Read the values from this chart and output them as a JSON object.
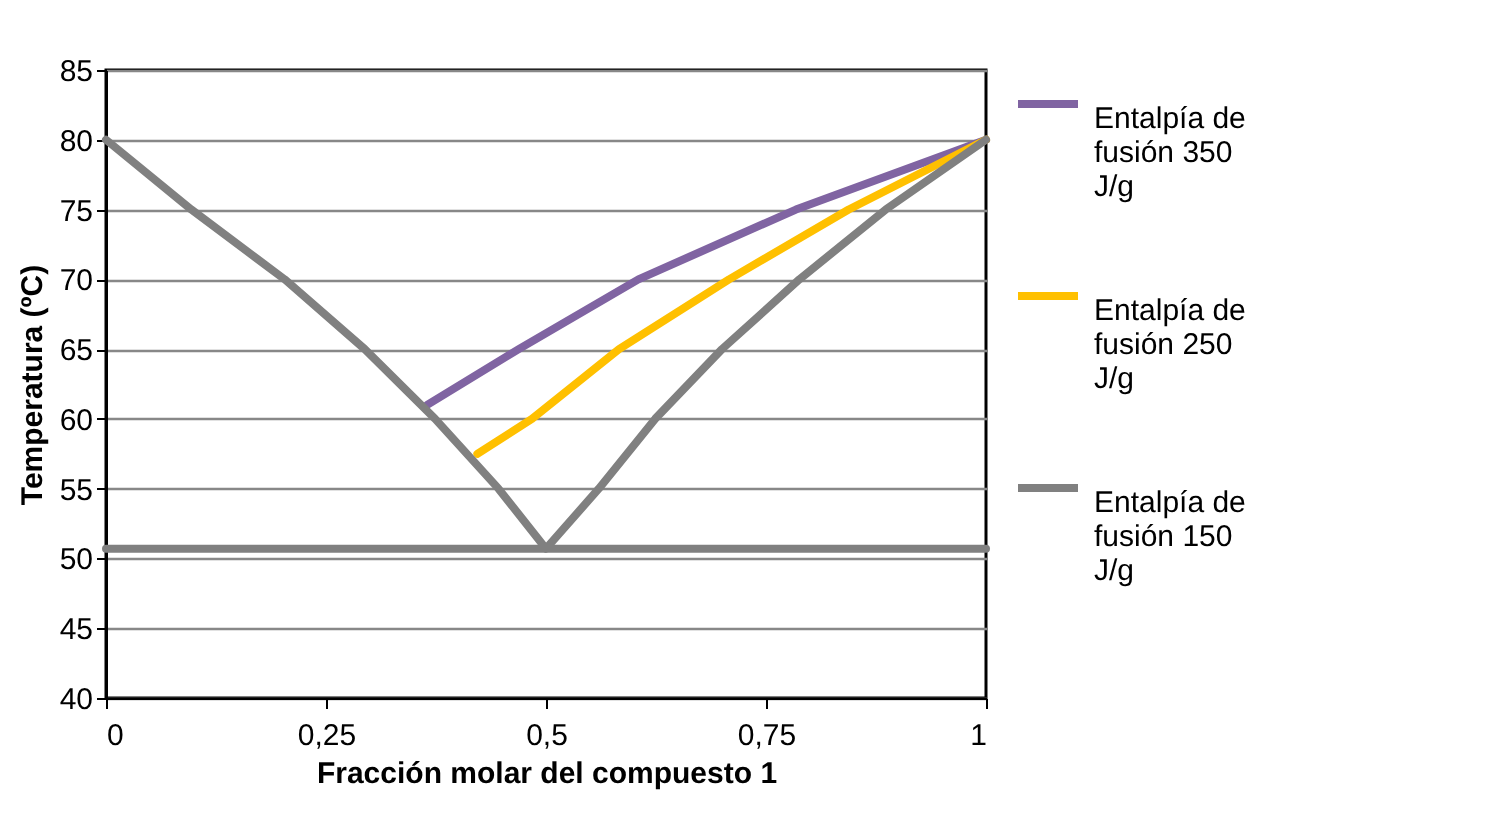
{
  "chart_data": {
    "type": "line",
    "xlabel": "Fracción molar del compuesto 1",
    "ylabel": "Temperatura (ºC)",
    "xlim": [
      0,
      1
    ],
    "xticks": [
      0,
      {
        "value": 0.25,
        "label": "0,25"
      },
      {
        "value": 0.5,
        "label": "0,5"
      },
      {
        "value": 0.75,
        "label": "0,75"
      },
      1
    ],
    "ylim": [
      40,
      85
    ],
    "yticks": [
      40,
      45,
      50,
      55,
      60,
      65,
      70,
      75,
      80,
      85
    ],
    "grid": "y",
    "legend": "right",
    "series": [
      {
        "name": "Entalpía de fusión 350 J/g",
        "color": "#8064a2",
        "x": [
          0.365,
          0.469,
          0.605,
          0.784,
          1
        ],
        "values": [
          61,
          65,
          70,
          75,
          80
        ]
      },
      {
        "name": "Entalpía de fusión 250 J/g",
        "color": "#ffc000",
        "x": [
          0.422,
          0.484,
          0.583,
          0.708,
          0.844,
          1
        ],
        "values": [
          57.5,
          60,
          65,
          70,
          75,
          80
        ]
      },
      {
        "name": "Entalpía de fusión 150 J/g",
        "color": "#808080",
        "x": [
          0,
          0.097,
          0.203,
          0.294,
          0.374,
          0.446,
          0.5,
          0.56,
          0.624,
          0.7,
          0.788,
          0.886,
          1
        ],
        "values": [
          80,
          75,
          70,
          65,
          60,
          55,
          50.7,
          55,
          60,
          65,
          70,
          75,
          80
        ]
      }
    ],
    "ref_lines": [
      {
        "axis": "y",
        "value": 50.7,
        "color": "#808080"
      }
    ]
  }
}
